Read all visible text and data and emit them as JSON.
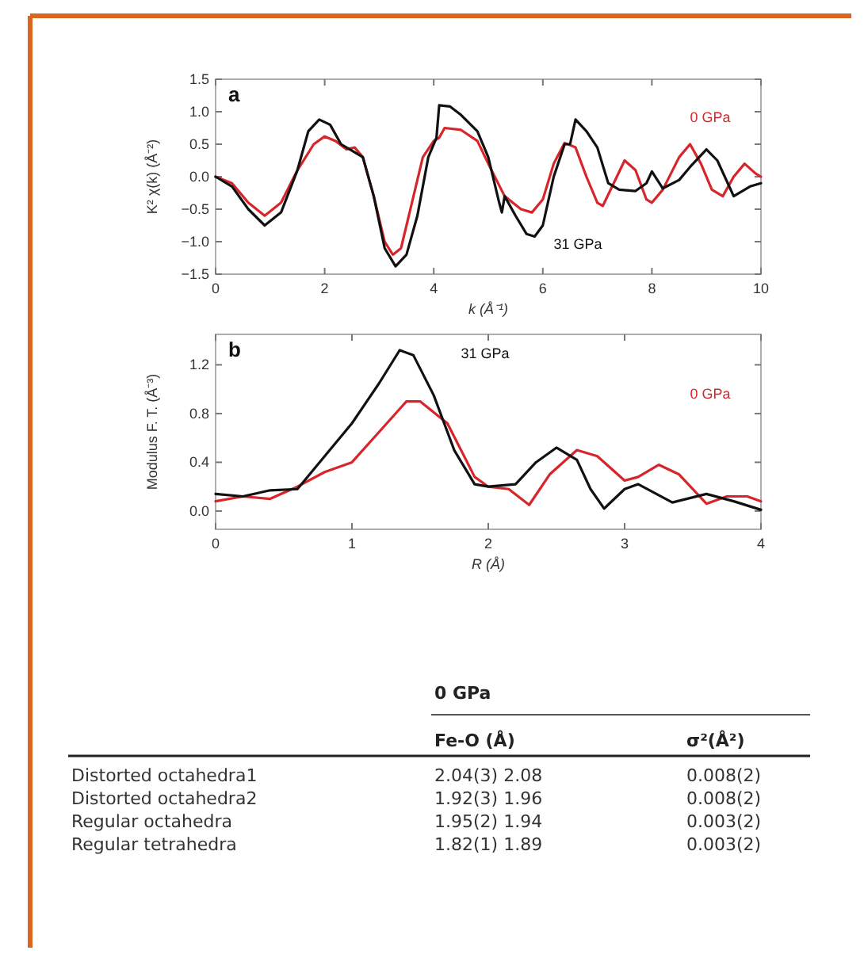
{
  "chart_data": [
    {
      "type": "line",
      "xlabel": "k (Å⁻¹)",
      "ylabel": "K² χ(k) (Å⁻²)",
      "annotations": [
        "a"
      ],
      "xlim": [
        0,
        10
      ],
      "ylim": [
        -1.5,
        1.5
      ],
      "xticks": [
        0,
        2,
        4,
        6,
        8,
        10
      ],
      "yticks": [
        {
          "value": -1.5,
          "label": "−1.5"
        },
        {
          "value": -1,
          "label": "−1.0"
        },
        {
          "value": -0.5,
          "label": "−0.5"
        },
        {
          "value": 0,
          "label": "0.0"
        },
        {
          "value": 0.5,
          "label": "0.5"
        },
        {
          "value": 1,
          "label": "1.0"
        },
        {
          "value": 1.5,
          "label": "1.5"
        }
      ],
      "series": [
        {
          "name": "0 GPa",
          "color": "#d7262b",
          "x": [
            0,
            0.3,
            0.6,
            0.9,
            1.2,
            1.5,
            1.8,
            2.0,
            2.2,
            2.4,
            2.55,
            2.7,
            2.9,
            3.1,
            3.25,
            3.4,
            3.6,
            3.8,
            4.0,
            4.1,
            4.2,
            4.5,
            4.8,
            5.0,
            5.3,
            5.6,
            5.8,
            6.0,
            6.2,
            6.4,
            6.6,
            6.8,
            7.0,
            7.1,
            7.3,
            7.5,
            7.7,
            7.9,
            8.0,
            8.2,
            8.5,
            8.7,
            8.9,
            9.1,
            9.3,
            9.5,
            9.7,
            9.9,
            10
          ],
          "values": [
            0,
            -0.1,
            -0.4,
            -0.6,
            -0.4,
            0.1,
            0.5,
            0.62,
            0.55,
            0.42,
            0.45,
            0.3,
            -0.3,
            -1.0,
            -1.2,
            -1.1,
            -0.4,
            0.3,
            0.55,
            0.6,
            0.75,
            0.72,
            0.55,
            0.2,
            -0.3,
            -0.5,
            -0.55,
            -0.35,
            0.2,
            0.52,
            0.45,
            0,
            -0.4,
            -0.45,
            -0.1,
            0.25,
            0.1,
            -0.35,
            -0.4,
            -0.2,
            0.3,
            0.5,
            0.2,
            -0.2,
            -0.3,
            0,
            0.2,
            0.05,
            0
          ]
        },
        {
          "name": "31 GPa",
          "color": "#111111",
          "x": [
            0,
            0.3,
            0.6,
            0.9,
            1.2,
            1.5,
            1.7,
            1.9,
            2.1,
            2.3,
            2.5,
            2.7,
            2.9,
            3.1,
            3.3,
            3.5,
            3.7,
            3.9,
            4.05,
            4.1,
            4.3,
            4.5,
            4.8,
            5.0,
            5.2,
            5.25,
            5.3,
            5.5,
            5.7,
            5.85,
            6.0,
            6.2,
            6.4,
            6.5,
            6.6,
            6.8,
            7.0,
            7.2,
            7.4,
            7.7,
            7.9,
            8.0,
            8.2,
            8.5,
            8.7,
            9.0,
            9.2,
            9.5,
            9.8,
            10
          ],
          "values": [
            0,
            -0.15,
            -0.5,
            -0.75,
            -0.55,
            0.1,
            0.7,
            0.88,
            0.8,
            0.5,
            0.4,
            0.3,
            -0.3,
            -1.1,
            -1.38,
            -1.2,
            -0.6,
            0.3,
            0.6,
            1.1,
            1.08,
            0.95,
            0.7,
            0.3,
            -0.4,
            -0.55,
            -0.3,
            -0.6,
            -0.88,
            -0.92,
            -0.75,
            0,
            0.5,
            0.5,
            0.88,
            0.7,
            0.45,
            -0.1,
            -0.2,
            -0.22,
            -0.1,
            0.08,
            -0.18,
            -0.05,
            0.15,
            0.42,
            0.25,
            -0.3,
            -0.15,
            -0.1
          ]
        }
      ]
    },
    {
      "type": "line",
      "xlabel": "R (Å)",
      "ylabel": "Modulus F. T. (Å⁻³)",
      "annotations": [
        "b"
      ],
      "xlim": [
        0,
        4
      ],
      "ylim": [
        -0.15,
        1.45
      ],
      "xticks": [
        0,
        1,
        2,
        3,
        4
      ],
      "yticks": [
        {
          "value": 0,
          "label": "0.0"
        },
        {
          "value": 0.4,
          "label": "0.4"
        },
        {
          "value": 0.8,
          "label": "0.8"
        },
        {
          "value": 1.2,
          "label": "1.2"
        }
      ],
      "series": [
        {
          "name": "0 GPa",
          "color": "#d7262b",
          "x": [
            0,
            0.2,
            0.4,
            0.6,
            0.8,
            1.0,
            1.2,
            1.4,
            1.5,
            1.7,
            1.8,
            1.9,
            2.0,
            2.15,
            2.3,
            2.45,
            2.65,
            2.8,
            3.0,
            3.1,
            3.25,
            3.4,
            3.6,
            3.75,
            3.9,
            4.0
          ],
          "values": [
            0.08,
            0.12,
            0.1,
            0.2,
            0.32,
            0.4,
            0.65,
            0.9,
            0.9,
            0.72,
            0.5,
            0.28,
            0.2,
            0.18,
            0.05,
            0.3,
            0.5,
            0.45,
            0.25,
            0.28,
            0.38,
            0.3,
            0.06,
            0.12,
            0.12,
            0.08
          ]
        },
        {
          "name": "31 GPa",
          "color": "#111111",
          "x": [
            0,
            0.2,
            0.4,
            0.6,
            0.8,
            1.0,
            1.2,
            1.35,
            1.45,
            1.6,
            1.75,
            1.9,
            2.0,
            2.2,
            2.35,
            2.5,
            2.65,
            2.75,
            2.85,
            3.0,
            3.1,
            3.35,
            3.6,
            3.8,
            4.0
          ],
          "values": [
            0.14,
            0.12,
            0.17,
            0.18,
            0.45,
            0.72,
            1.05,
            1.32,
            1.28,
            0.95,
            0.5,
            0.22,
            0.2,
            0.22,
            0.4,
            0.52,
            0.42,
            0.18,
            0.02,
            0.18,
            0.22,
            0.07,
            0.14,
            0.08,
            0.01
          ]
        }
      ]
    },
    {
      "type": "other",
      "title": "0 GPa",
      "annotations": [
        "Fe-O (Å)",
        "σ²(Å²)",
        "Distorted octahedra1",
        "2.04(3) 2.08",
        "0.008(2)",
        "Distorted octahedra2",
        "1.92(3) 1.96",
        "0.008(2)",
        "Regular octahedra",
        "1.95(2) 1.94",
        "0.003(2)",
        "Regular tetrahedra",
        "1.82(1) 1.89",
        "0.003(2)"
      ]
    }
  ]
}
